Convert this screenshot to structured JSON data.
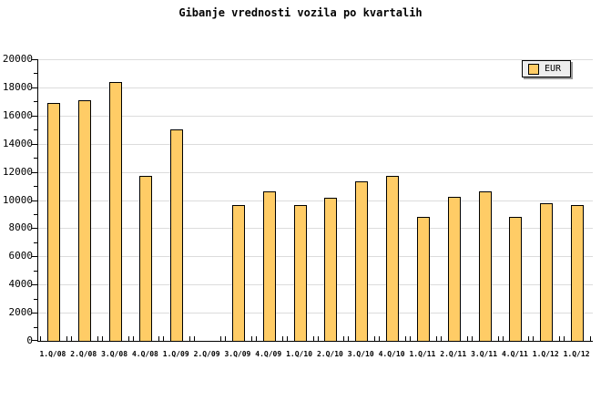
{
  "title": "Gibanje vrednosti vozila po kvartalih",
  "legend": {
    "label": "EUR",
    "swatch_color": "#ffcc66"
  },
  "colors": {
    "background": "#ffffff",
    "bar_fill": "#ffcc66",
    "bar_border": "#000000",
    "gridline": "#dcdcdc",
    "axis": "#000000",
    "legend_background": "#eeeeee",
    "legend_shadow": "#999999",
    "text": "#000000"
  },
  "chart_data": {
    "type": "bar",
    "title": "Gibanje vrednosti vozila po kvartalih",
    "categories": [
      "1.Q/08",
      "2.Q/08",
      "3.Q/08",
      "4.Q/08",
      "1.Q/09",
      "2.Q/09",
      "3.Q/09",
      "4.Q/09",
      "1.Q/10",
      "2.Q/10",
      "3.Q/10",
      "4.Q/10",
      "1.Q/11",
      "2.Q/11",
      "3.Q/11",
      "4.Q/11",
      "1.Q/12",
      "1.Q/12"
    ],
    "series": [
      {
        "name": "EUR",
        "values": [
          16900,
          17100,
          18350,
          11700,
          15000,
          null,
          9650,
          10600,
          9650,
          10150,
          11300,
          11700,
          8800,
          10200,
          10600,
          8800,
          9750,
          9650
        ]
      }
    ],
    "xlabel": "",
    "ylabel": "",
    "ylim": [
      0,
      20000
    ],
    "ytick_major_step": 2000,
    "ytick_minor_step": 1000,
    "grid": true,
    "legend_position": "top-right"
  }
}
